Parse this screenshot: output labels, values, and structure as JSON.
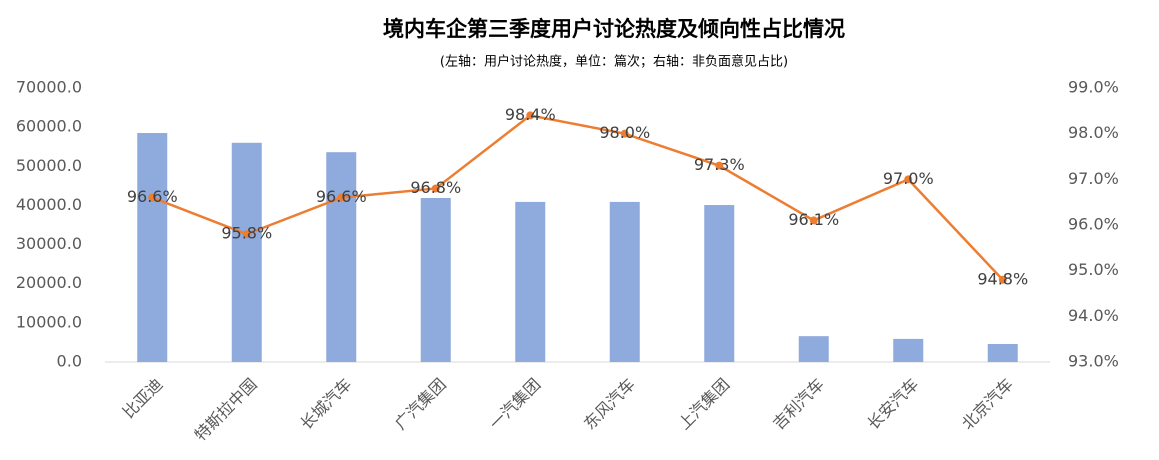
{
  "chart_data": {
    "type": "bar-line",
    "title": "境内车企第三季度用户讨论热度及倾向性占比情况",
    "subtitle": "(左轴：用户讨论热度，单位：篇次；右轴：非负面意见占比)",
    "categories": [
      "比亚迪",
      "特斯拉中国",
      "长城汽车",
      "广汽集团",
      "一汽集团",
      "东风汽车",
      "上汽集团",
      "吉利汽车",
      "长安汽车",
      "北京汽车"
    ],
    "series": [
      {
        "name": "用户讨论热度",
        "type": "bar",
        "color": "#8faadc",
        "values": [
          58500,
          56000,
          53600,
          41900,
          40900,
          40900,
          40100,
          6600,
          5900,
          4600
        ]
      },
      {
        "name": "非负面意见占比",
        "type": "line",
        "axis": "y2",
        "color": "#ed7d31",
        "values": [
          96.6,
          95.8,
          96.6,
          96.8,
          98.4,
          98.0,
          97.3,
          96.1,
          97.0,
          94.8
        ],
        "value_labels": [
          "96.6%",
          "95.8%",
          "96.6%",
          "96.8%",
          "98.4%",
          "98.0%",
          "97.3%",
          "96.1%",
          "97.0%",
          "94.8%"
        ]
      }
    ],
    "ylim": [
      0,
      70000
    ],
    "yticks": [
      {
        "value": 0,
        "label": "0.0"
      },
      {
        "value": 10000,
        "label": "10000.0"
      },
      {
        "value": 20000,
        "label": "20000.0"
      },
      {
        "value": 30000,
        "label": "30000.0"
      },
      {
        "value": 40000,
        "label": "40000.0"
      },
      {
        "value": 50000,
        "label": "50000.0"
      },
      {
        "value": 60000,
        "label": "60000.0"
      },
      {
        "value": 70000,
        "label": "70000.0"
      }
    ],
    "y2lim": [
      93,
      99
    ],
    "y2ticks": [
      {
        "value": 93,
        "label": "93.0%"
      },
      {
        "value": 94,
        "label": "94.0%"
      },
      {
        "value": 95,
        "label": "95.0%"
      },
      {
        "value": 96,
        "label": "96.0%"
      },
      {
        "value": 97,
        "label": "97.0%"
      },
      {
        "value": 98,
        "label": "98.0%"
      },
      {
        "value": 99,
        "label": "99.0%"
      }
    ]
  }
}
